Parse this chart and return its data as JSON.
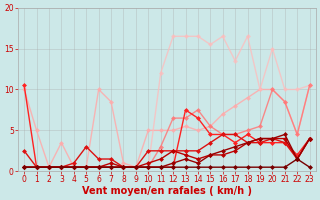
{
  "background_color": "#cce8e8",
  "grid_color": "#aaaaaa",
  "xlabel": "Vent moyen/en rafales ( km/h )",
  "xlim": [
    -0.5,
    23.5
  ],
  "ylim": [
    0,
    20
  ],
  "xticks": [
    0,
    1,
    2,
    3,
    4,
    5,
    6,
    7,
    8,
    9,
    10,
    11,
    12,
    13,
    14,
    15,
    16,
    17,
    18,
    19,
    20,
    21,
    22,
    23
  ],
  "yticks": [
    0,
    5,
    10,
    15,
    20
  ],
  "series": [
    {
      "x": [
        0,
        1,
        2,
        3,
        4,
        5,
        6,
        7,
        8,
        9,
        10,
        11,
        12,
        13,
        14,
        15,
        16,
        17,
        18,
        19,
        20,
        21,
        22,
        23
      ],
      "y": [
        10.0,
        5.0,
        0.5,
        3.5,
        0.5,
        0.5,
        10.0,
        8.5,
        1.0,
        0.5,
        5.0,
        5.0,
        5.0,
        5.5,
        5.0,
        5.5,
        7.0,
        8.0,
        9.0,
        10.0,
        10.0,
        8.5,
        4.5,
        10.5
      ],
      "color": "#ffaaaa",
      "alpha": 0.85,
      "lw": 1.0,
      "ms": 2.5
    },
    {
      "x": [
        0,
        1,
        2,
        3,
        4,
        5,
        6,
        7,
        8,
        9,
        10,
        11,
        12,
        13,
        14,
        15,
        16,
        17,
        18,
        19,
        20,
        21,
        22,
        23
      ],
      "y": [
        0.5,
        0.5,
        0.5,
        0.5,
        0.5,
        0.5,
        0.5,
        0.5,
        0.5,
        0.5,
        0.5,
        12.0,
        16.5,
        16.5,
        16.5,
        15.5,
        16.5,
        13.5,
        16.5,
        10.0,
        15.0,
        10.0,
        10.0,
        10.5
      ],
      "color": "#ffbbbb",
      "alpha": 0.75,
      "lw": 1.0,
      "ms": 2.5
    },
    {
      "x": [
        0,
        1,
        2,
        3,
        4,
        5,
        6,
        7,
        8,
        9,
        10,
        11,
        12,
        13,
        14,
        15,
        16,
        17,
        18,
        19,
        20,
        21,
        22,
        23
      ],
      "y": [
        0.5,
        0.5,
        0.5,
        0.5,
        0.5,
        0.5,
        0.5,
        0.5,
        0.5,
        0.5,
        0.5,
        3.0,
        6.5,
        6.5,
        7.5,
        5.5,
        4.5,
        4.5,
        5.0,
        5.5,
        10.0,
        8.5,
        4.5,
        10.5
      ],
      "color": "#ff7777",
      "alpha": 0.85,
      "lw": 1.0,
      "ms": 2.5
    },
    {
      "x": [
        0,
        1,
        2,
        3,
        4,
        5,
        6,
        7,
        8,
        9,
        10,
        11,
        12,
        13,
        14,
        15,
        16,
        17,
        18,
        19,
        20,
        21,
        22,
        23
      ],
      "y": [
        10.5,
        0.5,
        0.5,
        0.5,
        0.5,
        0.5,
        0.5,
        0.5,
        0.5,
        0.5,
        0.5,
        0.5,
        0.5,
        7.5,
        6.5,
        4.5,
        4.5,
        3.5,
        4.5,
        3.5,
        3.5,
        3.5,
        2.0,
        4.0
      ],
      "color": "#ff2222",
      "alpha": 1.0,
      "lw": 1.0,
      "ms": 2.5
    },
    {
      "x": [
        0,
        1,
        2,
        3,
        4,
        5,
        6,
        7,
        8,
        9,
        10,
        11,
        12,
        13,
        14,
        15,
        16,
        17,
        18,
        19,
        20,
        21,
        22,
        23
      ],
      "y": [
        2.5,
        0.5,
        0.5,
        0.5,
        1.0,
        3.0,
        1.5,
        1.5,
        0.5,
        0.5,
        2.5,
        2.5,
        2.5,
        2.5,
        2.5,
        3.5,
        4.5,
        4.5,
        3.5,
        3.5,
        4.0,
        3.5,
        1.5,
        4.0
      ],
      "color": "#dd1111",
      "alpha": 1.0,
      "lw": 1.0,
      "ms": 2.5
    },
    {
      "x": [
        0,
        1,
        2,
        3,
        4,
        5,
        6,
        7,
        8,
        9,
        10,
        11,
        12,
        13,
        14,
        15,
        16,
        17,
        18,
        19,
        20,
        21,
        22,
        23
      ],
      "y": [
        0.5,
        0.5,
        0.5,
        0.5,
        0.5,
        0.5,
        0.5,
        1.0,
        0.5,
        0.5,
        1.0,
        1.5,
        2.5,
        2.0,
        1.5,
        2.0,
        2.0,
        2.5,
        3.5,
        4.0,
        4.0,
        4.0,
        1.5,
        4.0
      ],
      "color": "#bb0000",
      "alpha": 1.0,
      "lw": 1.0,
      "ms": 2.5
    },
    {
      "x": [
        0,
        1,
        2,
        3,
        4,
        5,
        6,
        7,
        8,
        9,
        10,
        11,
        12,
        13,
        14,
        15,
        16,
        17,
        18,
        19,
        20,
        21,
        22,
        23
      ],
      "y": [
        0.5,
        0.5,
        0.5,
        0.5,
        0.5,
        0.5,
        0.5,
        0.5,
        0.5,
        0.5,
        0.5,
        0.5,
        1.0,
        1.5,
        1.0,
        2.0,
        2.5,
        3.0,
        3.5,
        4.0,
        4.0,
        4.5,
        1.5,
        4.0
      ],
      "color": "#990000",
      "alpha": 1.0,
      "lw": 1.0,
      "ms": 2.5
    },
    {
      "x": [
        0,
        1,
        2,
        3,
        4,
        5,
        6,
        7,
        8,
        9,
        10,
        11,
        12,
        13,
        14,
        15,
        16,
        17,
        18,
        19,
        20,
        21,
        22,
        23
      ],
      "y": [
        0.5,
        0.5,
        0.5,
        0.5,
        0.5,
        0.5,
        0.5,
        0.5,
        0.5,
        0.5,
        0.5,
        0.5,
        0.5,
        0.5,
        0.5,
        0.5,
        0.5,
        0.5,
        0.5,
        0.5,
        0.5,
        0.5,
        1.5,
        0.5
      ],
      "color": "#770000",
      "alpha": 1.0,
      "lw": 1.0,
      "ms": 2.5
    }
  ],
  "xlabel_fontsize": 7,
  "tick_fontsize": 5.5,
  "tick_color": "#cc0000"
}
